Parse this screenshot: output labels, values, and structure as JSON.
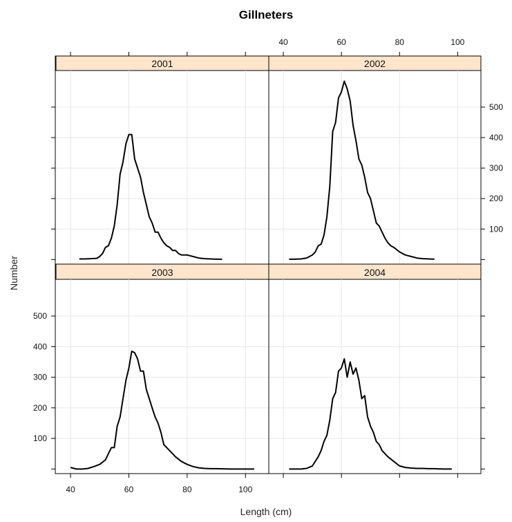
{
  "chart_data": {
    "type": "line",
    "title": "Gillneters",
    "xlabel": "Length (cm)",
    "ylabel": "Number",
    "xlim": [
      35,
      108
    ],
    "ylim": [
      -15,
      620
    ],
    "x_ticks": [
      40,
      60,
      80,
      100
    ],
    "y_ticks": [
      100,
      200,
      300,
      400,
      500
    ],
    "grid": true,
    "layout": "2x2 panels",
    "colors": {
      "line": "#000000",
      "strip": "#ffe5cc",
      "grid": "#e6e6e6",
      "frame": "#000000"
    },
    "panels": [
      {
        "label": "2001",
        "x": [
          43,
          45,
          47,
          49,
          50,
          51,
          52,
          53,
          54,
          55,
          56,
          57,
          58,
          59,
          60,
          61,
          62,
          63,
          64,
          65,
          66,
          67,
          68,
          69,
          70,
          71,
          72,
          73,
          74,
          75,
          76,
          77,
          78,
          80,
          82,
          84,
          86,
          88,
          90,
          92
        ],
        "y": [
          2,
          2,
          3,
          4,
          10,
          20,
          40,
          45,
          70,
          110,
          180,
          280,
          320,
          380,
          410,
          410,
          330,
          300,
          270,
          220,
          180,
          140,
          120,
          90,
          90,
          70,
          55,
          45,
          40,
          30,
          30,
          20,
          15,
          15,
          10,
          5,
          3,
          2,
          1,
          1
        ]
      },
      {
        "label": "2002",
        "x": [
          42,
          44,
          46,
          48,
          50,
          51,
          52,
          53,
          54,
          55,
          56,
          57,
          58,
          59,
          60,
          61,
          62,
          63,
          64,
          65,
          66,
          67,
          68,
          69,
          70,
          71,
          72,
          73,
          74,
          75,
          76,
          77,
          78,
          80,
          82,
          84,
          86,
          88,
          90,
          92
        ],
        "y": [
          1,
          1,
          2,
          5,
          15,
          25,
          45,
          50,
          80,
          140,
          240,
          420,
          450,
          530,
          550,
          585,
          560,
          520,
          440,
          390,
          330,
          310,
          270,
          220,
          200,
          160,
          120,
          110,
          90,
          70,
          55,
          45,
          40,
          25,
          15,
          10,
          5,
          3,
          2,
          1
        ]
      },
      {
        "label": "2003",
        "x": [
          40,
          42,
          44,
          46,
          48,
          50,
          52,
          53,
          54,
          55,
          56,
          57,
          58,
          59,
          60,
          61,
          62,
          63,
          64,
          65,
          66,
          67,
          68,
          69,
          70,
          71,
          72,
          73,
          74,
          75,
          76,
          78,
          80,
          82,
          84,
          86,
          88,
          90,
          95,
          100,
          103
        ],
        "y": [
          5,
          0,
          0,
          2,
          8,
          15,
          30,
          50,
          70,
          70,
          140,
          170,
          230,
          290,
          330,
          385,
          380,
          360,
          320,
          320,
          260,
          230,
          200,
          170,
          150,
          120,
          80,
          70,
          60,
          50,
          40,
          25,
          15,
          8,
          4,
          2,
          1,
          1,
          0,
          0,
          0
        ]
      },
      {
        "label": "2004",
        "x": [
          42,
          44,
          46,
          48,
          50,
          52,
          53,
          54,
          55,
          56,
          57,
          58,
          59,
          60,
          61,
          62,
          63,
          64,
          65,
          66,
          67,
          68,
          69,
          70,
          71,
          72,
          73,
          74,
          75,
          76,
          78,
          80,
          82,
          84,
          86,
          88,
          90,
          92,
          95,
          98
        ],
        "y": [
          0,
          0,
          0,
          2,
          10,
          40,
          60,
          90,
          110,
          160,
          230,
          250,
          320,
          330,
          360,
          300,
          350,
          310,
          330,
          290,
          230,
          240,
          170,
          140,
          120,
          90,
          80,
          60,
          50,
          40,
          25,
          10,
          5,
          3,
          2,
          2,
          1,
          1,
          0,
          0
        ]
      }
    ]
  }
}
